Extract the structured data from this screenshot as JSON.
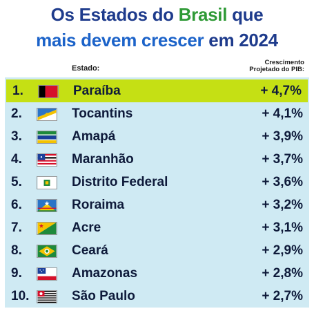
{
  "title": {
    "line1": [
      {
        "text": "Os Estados do ",
        "color": "#1e3b8c"
      },
      {
        "text": "Brasil",
        "color": "#2f9a36"
      },
      {
        "text": " que",
        "color": "#1e3b8c"
      }
    ],
    "line2": [
      {
        "text": "mais devem crescer",
        "color": "#1c63c9"
      },
      {
        "text": " em 2024",
        "color": "#1e3b8c"
      }
    ]
  },
  "headers": {
    "estado": "Estado:",
    "growth_line1": "Crescimento",
    "growth_line2": "Projetado do PIB:"
  },
  "colors": {
    "highlight": "#c5e014",
    "panel": "#cfeaf3",
    "text": "#0e1a3a"
  },
  "rows": [
    {
      "rank": "1.",
      "state": "Paraíba",
      "growth": "+ 4,7%",
      "flag_icon": "paraiba-flag-icon"
    },
    {
      "rank": "2.",
      "state": "Tocantins",
      "growth": "+ 4,1%",
      "flag_icon": "tocantins-flag-icon"
    },
    {
      "rank": "3.",
      "state": "Amapá",
      "growth": "+ 3,9%",
      "flag_icon": "amapa-flag-icon"
    },
    {
      "rank": "4.",
      "state": "Maranhão",
      "growth": "+ 3,7%",
      "flag_icon": "maranhao-flag-icon"
    },
    {
      "rank": "5.",
      "state": "Distrito Federal",
      "growth": "+ 3,6%",
      "flag_icon": "distrito-federal-flag-icon"
    },
    {
      "rank": "6.",
      "state": "Roraima",
      "growth": "+ 3,2%",
      "flag_icon": "roraima-flag-icon"
    },
    {
      "rank": "7.",
      "state": "Acre",
      "growth": "+ 3,1%",
      "flag_icon": "acre-flag-icon"
    },
    {
      "rank": "8.",
      "state": "Ceará",
      "growth": "+ 2,9%",
      "flag_icon": "ceara-flag-icon"
    },
    {
      "rank": "9.",
      "state": "Amazonas",
      "growth": "+ 2,8%",
      "flag_icon": "amazonas-flag-icon"
    },
    {
      "rank": "10.",
      "state": "São Paulo",
      "growth": "+ 2,7%",
      "flag_icon": "sao-paulo-flag-icon"
    }
  ]
}
